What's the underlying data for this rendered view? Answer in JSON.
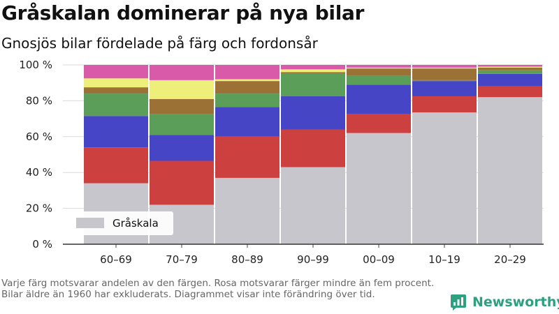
{
  "header": {
    "title": "Gråskalan dominerar på nya bilar",
    "subtitle": "Gnosjös bilar fördelade på färg och fordonsår"
  },
  "footnote": "Varje färg motsvarar andelen av den färgen. Rosa motsvarar färger mindre än fem procent. Bilar äldre än 1960 har exkluderats. Diagrammet visar inte förändring över tid.",
  "brand": {
    "name": "Newsworthy",
    "icon": "newsworthy-logo-icon"
  },
  "chart_data": {
    "type": "bar",
    "stacked": true,
    "categories": [
      "60–69",
      "70–79",
      "80–89",
      "90–99",
      "00–09",
      "10–19",
      "20–29"
    ],
    "ylim": [
      0,
      100
    ],
    "yticks": [
      0,
      20,
      40,
      60,
      80,
      100
    ],
    "ytick_labels": [
      "0 %",
      "20 %",
      "40 %",
      "60 %",
      "80 %",
      "100 %"
    ],
    "grid": true,
    "legend": {
      "position": "bottom-left",
      "entries": [
        "Gråskala"
      ]
    },
    "series": [
      {
        "name": "Gråskala",
        "color": "#c6c6cc",
        "values": [
          34,
          22,
          37,
          43,
          62,
          73.5,
          82
        ]
      },
      {
        "color": "#cd4040",
        "values": [
          20,
          24.5,
          23,
          21,
          10.5,
          9,
          6
        ]
      },
      {
        "color": "#4545c5",
        "values": [
          17.5,
          14.5,
          16.5,
          18.5,
          16.5,
          8.5,
          7
        ]
      },
      {
        "color": "#5a9e5a",
        "values": [
          12.5,
          11.5,
          7.5,
          12.5,
          5,
          0.5,
          2
        ]
      },
      {
        "color": "#9b7135",
        "values": [
          3.5,
          8.5,
          7,
          1,
          4,
          6.5,
          1.5
        ]
      },
      {
        "color": "#eeee7a",
        "values": [
          5,
          10.5,
          1,
          1.5,
          0.5,
          0.5,
          0.5
        ]
      },
      {
        "color": "#d85aa8",
        "values": [
          7.5,
          8.5,
          8,
          2.5,
          1.5,
          1.5,
          1
        ]
      }
    ]
  }
}
